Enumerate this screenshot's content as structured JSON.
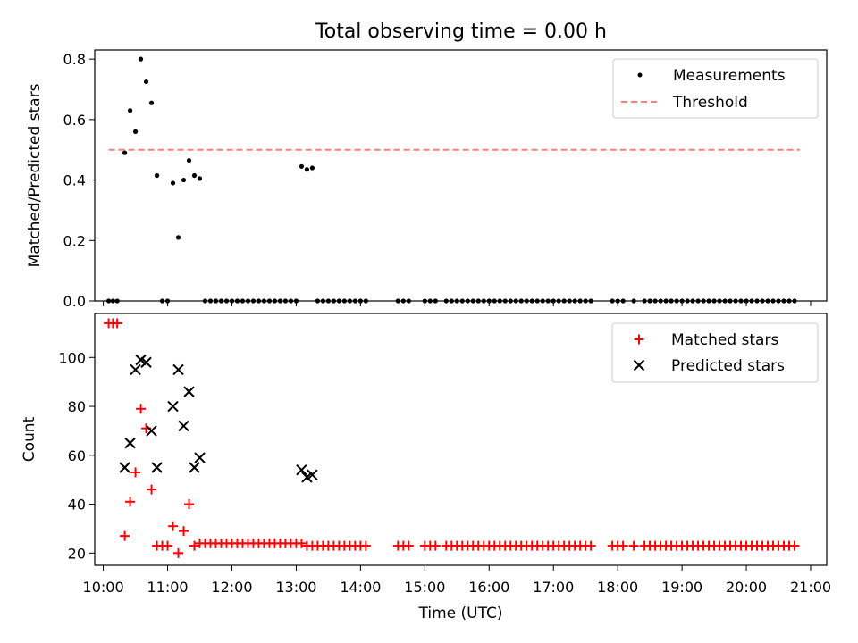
{
  "title": "Total observing time = 0.00 h",
  "colors": {
    "threshold": "#ff7f7f",
    "matched": "#ff0000",
    "predicted": "#000000",
    "measurement": "#000000"
  },
  "chart_data": [
    {
      "type": "scatter",
      "ylabel": "Matched/Predicted stars",
      "xlim": [
        "09:52",
        "21:15"
      ],
      "ylim": [
        0,
        0.83
      ],
      "yticks": [
        "0.0",
        "0.2",
        "0.4",
        "0.6",
        "0.8"
      ],
      "legend": "top-right",
      "legend_labels": [
        "Measurements",
        "Threshold"
      ],
      "threshold": {
        "y": 0.5,
        "x_start": "10:05",
        "x_end": "20:50"
      },
      "x": [
        "10:05",
        "10:09",
        "10:13",
        "10:20",
        "10:25",
        "10:30",
        "10:35",
        "10:40",
        "10:45",
        "10:50",
        "10:55",
        "11:00",
        "11:05",
        "11:10",
        "11:15",
        "11:20",
        "11:25",
        "11:30",
        "11:35",
        "11:40",
        "11:45",
        "11:50",
        "11:55",
        "12:00",
        "12:05",
        "12:10",
        "12:15",
        "12:20",
        "12:25",
        "12:30",
        "12:35",
        "12:40",
        "12:45",
        "12:50",
        "12:55",
        "13:00",
        "13:05",
        "13:10",
        "13:15",
        "13:20",
        "13:25",
        "13:30",
        "13:35",
        "13:40",
        "13:45",
        "13:50",
        "13:55",
        "14:00",
        "14:05",
        "14:35",
        "14:40",
        "14:45",
        "15:00",
        "15:05",
        "15:10",
        "15:20",
        "15:25",
        "15:30",
        "15:35",
        "15:40",
        "15:45",
        "15:50",
        "15:55",
        "16:00",
        "16:05",
        "16:10",
        "16:15",
        "16:20",
        "16:25",
        "16:30",
        "16:35",
        "16:40",
        "16:45",
        "16:50",
        "16:55",
        "17:00",
        "17:05",
        "17:10",
        "17:15",
        "17:20",
        "17:25",
        "17:30",
        "17:35",
        "17:55",
        "18:00",
        "18:05",
        "18:15",
        "18:25",
        "18:30",
        "18:35",
        "18:40",
        "18:45",
        "18:50",
        "18:55",
        "19:00",
        "19:05",
        "19:10",
        "19:15",
        "19:20",
        "19:25",
        "19:30",
        "19:35",
        "19:40",
        "19:45",
        "19:50",
        "19:55",
        "20:00",
        "20:05",
        "20:10",
        "20:15",
        "20:20",
        "20:25",
        "20:30",
        "20:35",
        "20:40",
        "20:45"
      ],
      "y": [
        0,
        0,
        0,
        0.49,
        0.63,
        0.56,
        0.8,
        0.725,
        0.655,
        0.415,
        0,
        0,
        0.39,
        0.21,
        0.4,
        0.465,
        0.415,
        0.405,
        0,
        0,
        0,
        0,
        0,
        0,
        0,
        0,
        0,
        0,
        0,
        0,
        0,
        0,
        0,
        0,
        0,
        0,
        0.445,
        0.435,
        0.44,
        0,
        0,
        0,
        0,
        0,
        0,
        0,
        0,
        0,
        0,
        0,
        0,
        0,
        0,
        0,
        0,
        0,
        0,
        0,
        0,
        0,
        0,
        0,
        0,
        0,
        0,
        0,
        0,
        0,
        0,
        0,
        0,
        0,
        0,
        0,
        0,
        0,
        0,
        0,
        0,
        0,
        0,
        0,
        0,
        0,
        0,
        0,
        0,
        0,
        0,
        0,
        0,
        0,
        0,
        0,
        0,
        0,
        0,
        0,
        0,
        0,
        0,
        0,
        0,
        0,
        0,
        0,
        0,
        0,
        0,
        0,
        0,
        0,
        0,
        0,
        0,
        0
      ]
    },
    {
      "type": "scatter",
      "xlabel": "Time (UTC)",
      "ylabel": "Count",
      "xlim": [
        "09:52",
        "21:15"
      ],
      "ylim": [
        15,
        118
      ],
      "yticks": [
        "20",
        "40",
        "60",
        "80",
        "100"
      ],
      "xticks": [
        "10:00",
        "11:00",
        "12:00",
        "13:00",
        "14:00",
        "15:00",
        "16:00",
        "17:00",
        "18:00",
        "19:00",
        "20:00",
        "21:00"
      ],
      "legend": "top-right",
      "series": [
        {
          "name": "Matched stars",
          "marker": "plus",
          "x": [
            "10:05",
            "10:09",
            "10:13",
            "10:20",
            "10:25",
            "10:30",
            "10:35",
            "10:40",
            "10:45",
            "10:50",
            "10:55",
            "11:00",
            "11:05",
            "11:10",
            "11:15",
            "11:20",
            "11:25",
            "11:30",
            "11:35",
            "11:40",
            "11:45",
            "11:50",
            "11:55",
            "12:00",
            "12:05",
            "12:10",
            "12:15",
            "12:20",
            "12:25",
            "12:30",
            "12:35",
            "12:40",
            "12:45",
            "12:50",
            "12:55",
            "13:00",
            "13:05",
            "13:10",
            "13:15",
            "13:20",
            "13:25",
            "13:30",
            "13:35",
            "13:40",
            "13:45",
            "13:50",
            "13:55",
            "14:00",
            "14:05",
            "14:35",
            "14:40",
            "14:45",
            "15:00",
            "15:05",
            "15:10",
            "15:20",
            "15:25",
            "15:30",
            "15:35",
            "15:40",
            "15:45",
            "15:50",
            "15:55",
            "16:00",
            "16:05",
            "16:10",
            "16:15",
            "16:20",
            "16:25",
            "16:30",
            "16:35",
            "16:40",
            "16:45",
            "16:50",
            "16:55",
            "17:00",
            "17:05",
            "17:10",
            "17:15",
            "17:20",
            "17:25",
            "17:30",
            "17:35",
            "17:55",
            "18:00",
            "18:05",
            "18:15",
            "18:25",
            "18:30",
            "18:35",
            "18:40",
            "18:45",
            "18:50",
            "18:55",
            "19:00",
            "19:05",
            "19:10",
            "19:15",
            "19:20",
            "19:25",
            "19:30",
            "19:35",
            "19:40",
            "19:45",
            "19:50",
            "19:55",
            "20:00",
            "20:05",
            "20:10",
            "20:15",
            "20:20",
            "20:25",
            "20:30",
            "20:35",
            "20:40",
            "20:45"
          ],
          "values": [
            114,
            114,
            114,
            27,
            41,
            53,
            79,
            71,
            46,
            23,
            23,
            23,
            31,
            20,
            29,
            40,
            23,
            24,
            24,
            24,
            24,
            24,
            24,
            24,
            24,
            24,
            24,
            24,
            24,
            24,
            24,
            24,
            24,
            24,
            24,
            24,
            24,
            23,
            23,
            23,
            23,
            23,
            23,
            23,
            23,
            23,
            23,
            23,
            23,
            23,
            23,
            23,
            23,
            23,
            23,
            23,
            23,
            23,
            23,
            23,
            23,
            23,
            23,
            23,
            23,
            23,
            23,
            23,
            23,
            23,
            23,
            23,
            23,
            23,
            23,
            23,
            23,
            23,
            23,
            23,
            23,
            23,
            23,
            23,
            23,
            23,
            23,
            23,
            23,
            23,
            23,
            23,
            23,
            23,
            23,
            23,
            23,
            23,
            23,
            23,
            23,
            23,
            23,
            23,
            23,
            23,
            23,
            23,
            23,
            23,
            23,
            23,
            23,
            23,
            23,
            23
          ]
        },
        {
          "name": "Predicted stars",
          "marker": "x",
          "x": [
            "10:20",
            "10:25",
            "10:30",
            "10:35",
            "10:40",
            "10:45",
            "10:50",
            "11:05",
            "11:10",
            "11:15",
            "11:20",
            "11:25",
            "11:30",
            "13:05",
            "13:10",
            "13:15"
          ],
          "values": [
            55,
            65,
            95,
            99,
            98,
            70,
            55,
            80,
            95,
            72,
            86,
            55,
            59,
            54,
            51,
            52
          ]
        }
      ]
    }
  ]
}
